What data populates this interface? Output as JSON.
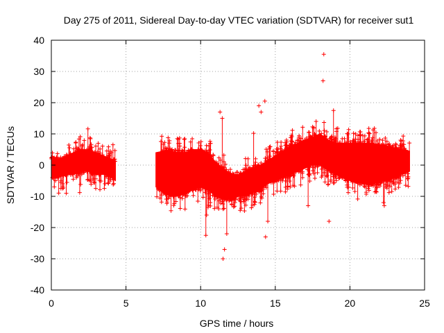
{
  "chart_data": {
    "type": "scatter",
    "title": "Day 275 of 2011, Sidereal Day-to-day VTEC variation (SDTVAR) for receiver sut1",
    "xlabel": "GPS time / hours",
    "ylabel": "SDTVAR / TECUs",
    "xlim": [
      0,
      25
    ],
    "ylim": [
      -40,
      40
    ],
    "xticks": [
      0,
      5,
      10,
      15,
      20,
      25
    ],
    "yticks": [
      -40,
      -30,
      -20,
      -10,
      0,
      10,
      20,
      30,
      40
    ],
    "grid": true,
    "marker": "+",
    "color": "#ff0000",
    "series": [
      {
        "name": "sut1",
        "envelope": {
          "x": [
            0.0,
            0.5,
            1.0,
            1.5,
            2.0,
            2.5,
            3.0,
            3.5,
            4.0,
            4.3,
            7.0,
            7.5,
            8.0,
            8.5,
            9.0,
            9.5,
            10.0,
            10.5,
            11.0,
            11.5,
            12.0,
            12.5,
            13.0,
            13.5,
            14.0,
            14.5,
            15.0,
            15.5,
            16.0,
            16.5,
            17.0,
            17.5,
            18.0,
            18.3,
            18.6,
            19.0,
            19.5,
            20.0,
            20.5,
            21.0,
            21.5,
            22.0,
            22.5,
            23.0,
            23.5,
            24.0
          ],
          "upper": [
            2.0,
            2.0,
            3.0,
            4.0,
            5.0,
            5.0,
            4.0,
            3.0,
            2.0,
            1.0,
            4.0,
            4.5,
            4.5,
            4.0,
            4.0,
            5.0,
            5.0,
            4.0,
            1.0,
            -1.0,
            -3.0,
            -3.0,
            -2.0,
            -1.0,
            0.0,
            1.5,
            3.0,
            4.5,
            6.0,
            7.0,
            8.0,
            9.0,
            10.0,
            9.0,
            8.0,
            7.0,
            7.0,
            7.0,
            7.0,
            7.0,
            7.0,
            6.5,
            6.0,
            5.5,
            5.0,
            4.5
          ],
          "lower": [
            -4.0,
            -4.0,
            -3.0,
            -3.0,
            -2.0,
            -2.0,
            -3.0,
            -3.0,
            -4.0,
            -5.0,
            -7.0,
            -9.0,
            -10.0,
            -10.0,
            -9.0,
            -8.0,
            -7.0,
            -8.0,
            -10.0,
            -11.0,
            -11.0,
            -10.0,
            -10.0,
            -9.0,
            -8.0,
            -6.0,
            -5.0,
            -4.0,
            -3.0,
            -2.0,
            -1.0,
            0.0,
            0.0,
            -1.0,
            -2.0,
            -3.0,
            -4.0,
            -5.0,
            -6.0,
            -6.0,
            -6.0,
            -5.5,
            -5.0,
            -4.0,
            -3.0,
            -2.0
          ]
        },
        "outliers": {
          "x": [
            2.45,
            1.0,
            1.9,
            18.25,
            18.2,
            18.9,
            11.3,
            11.45,
            11.5,
            11.6,
            11.75,
            10.35,
            10.4,
            14.3,
            13.9,
            14.05,
            14.35,
            14.5,
            13.55,
            12.65,
            10.5,
            17.2,
            18.6,
            21.0,
            22.3,
            23.4,
            23.5,
            22.25,
            12.3
          ],
          "y": [
            11.6,
            -9.0,
            -8.8,
            35.5,
            27.0,
            17.5,
            17.0,
            15.0,
            -30.0,
            -27.0,
            -22.0,
            -22.5,
            -16.0,
            20.5,
            19.0,
            17.0,
            -23.0,
            -18.0,
            10.2,
            -14.5,
            -13.5,
            -13.0,
            -18.0,
            -7.0,
            -13.0,
            8.0,
            6.5,
            -12.0,
            -12.0
          ]
        }
      }
    ]
  }
}
